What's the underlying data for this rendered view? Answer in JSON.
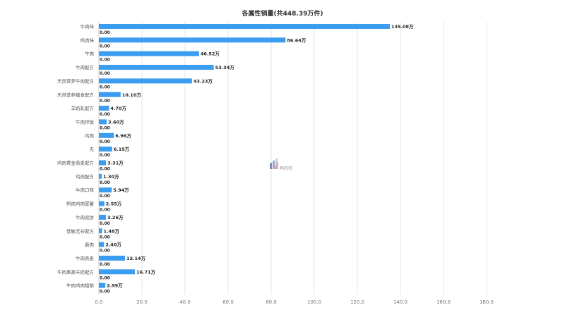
{
  "chart_data": {
    "type": "bar",
    "orientation": "horizontal",
    "title": "各属性销量(共448.39万件)",
    "xlabel": "",
    "ylabel": "",
    "xlim": [
      0,
      180
    ],
    "x_ticks": [
      0,
      20,
      40,
      60,
      80,
      100,
      120,
      140,
      160,
      180
    ],
    "x_tick_labels": [
      "0.0",
      "20.0",
      "40.0",
      "60.0",
      "80.0",
      "100.0",
      "120.0",
      "140.0",
      "160.0",
      "180.0"
    ],
    "grid": true,
    "legend": "none",
    "categories": [
      "牛肉味",
      "鸡肉味",
      "牛肉",
      "牛肉配方",
      "天然营养牛肉配方",
      "天然营养膳食配方",
      "羊奶乳配方",
      "牛肉拌饭",
      "鸡肉",
      "无",
      "鸡肉黄金燕麦配方",
      "鸡肉配方",
      "牛肉口味",
      "鸭肉鸡肉雾薯",
      "牛肉双拼",
      "低敏无谷配方",
      "鹿肉",
      "牛肉燕麦",
      "牛肉果蔬羊奶配方",
      "牛肉鸡肉粗粮"
    ],
    "series": [
      {
        "values": [
          135.08,
          86.64,
          46.52,
          53.34,
          43.23,
          10.1,
          4.7,
          3.6,
          6.96,
          6.15,
          3.31,
          1.3,
          5.94,
          2.55,
          3.26,
          1.48,
          2.4,
          12.14,
          16.71,
          2.99
        ],
        "labels": [
          "135.08万",
          "86.64万",
          "46.52万",
          "53.34万",
          "43.23万",
          "10.10万",
          "4.70万",
          "3.60万",
          "6.96万",
          "6.15万",
          "3.31万",
          "1.30万",
          "5.94万",
          "2.55万",
          "3.26万",
          "1.48万",
          "2.40万",
          "12.14万",
          "16.71万",
          "2.99万"
        ]
      },
      {
        "values": [
          0,
          0,
          0,
          0,
          0,
          0,
          0,
          0,
          0,
          0,
          0,
          0,
          0,
          0,
          0,
          0,
          0,
          0,
          0,
          0
        ],
        "labels": [
          "0.00",
          "0.00",
          "0.00",
          "0.00",
          "0.00",
          "0.00",
          "0.00",
          "0.00",
          "0.00",
          "0.00",
          "0.00",
          "0.00",
          "0.00",
          "0.00",
          "0.00",
          "0.00",
          "0.00",
          "0.00",
          "0.00",
          "0.00"
        ]
      }
    ],
    "colors": {
      "bar": "#3a9df0",
      "grid": "#e6e6e6",
      "axis": "#cccccc",
      "category_text": "#555555",
      "tick_text": "#777777",
      "label_text": "#222222"
    }
  },
  "watermark": {
    "text": "鸭肉鸡",
    "icon": "bar-chart-logo-icon"
  }
}
